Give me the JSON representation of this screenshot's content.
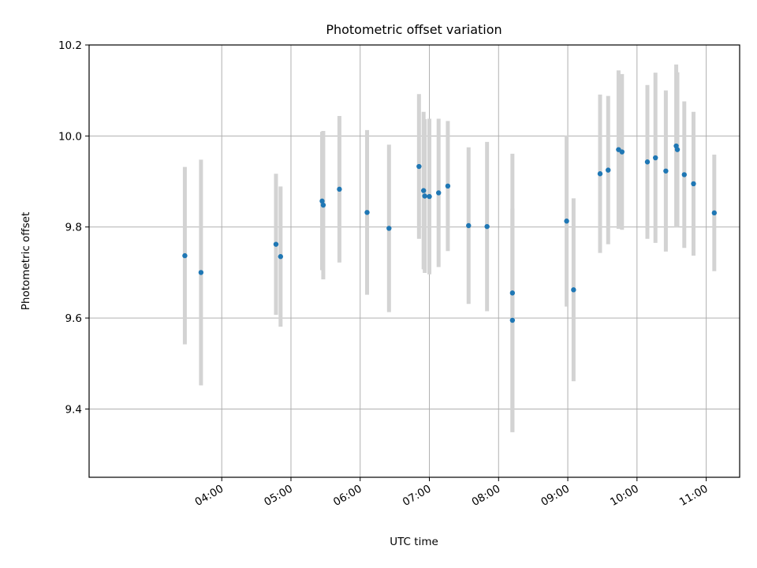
{
  "chart_data": {
    "type": "scatter",
    "title": "Photometric offset variation",
    "xlabel": "UTC time",
    "ylabel": "Photometric offset",
    "x_unit": "UTC time of day (HH:MM)",
    "xlim": [
      "02:05",
      "11:29"
    ],
    "ylim": [
      9.25,
      10.2
    ],
    "x_ticks": [
      "04:00",
      "05:00",
      "06:00",
      "07:00",
      "08:00",
      "09:00",
      "10:00",
      "11:00"
    ],
    "y_ticks": [
      9.4,
      9.6,
      9.8,
      10.0,
      10.2
    ],
    "y_tick_labels": [
      "9.4",
      "9.6",
      "9.8",
      "10.0",
      "10.2"
    ],
    "grid": true,
    "marker_color": "#1f77b4",
    "errorbar_color": "#d3d3d3",
    "series": [
      {
        "points": [
          {
            "x": "03:28",
            "y": 9.737,
            "err": 0.195
          },
          {
            "x": "03:42",
            "y": 9.7,
            "err": 0.248
          },
          {
            "x": "04:47",
            "y": 9.762,
            "err": 0.155
          },
          {
            "x": "04:51",
            "y": 9.735,
            "err": 0.154
          },
          {
            "x": "05:27",
            "y": 9.857,
            "err": 0.152
          },
          {
            "x": "05:28",
            "y": 9.848,
            "err": 0.163
          },
          {
            "x": "05:42",
            "y": 9.883,
            "err": 0.161
          },
          {
            "x": "06:06",
            "y": 9.832,
            "err": 0.181
          },
          {
            "x": "06:25",
            "y": 9.797,
            "err": 0.184
          },
          {
            "x": "06:51",
            "y": 9.933,
            "err": 0.159
          },
          {
            "x": "06:55",
            "y": 9.88,
            "err": 0.173
          },
          {
            "x": "06:56",
            "y": 9.868,
            "err": 0.169
          },
          {
            "x": "07:00",
            "y": 9.867,
            "err": 0.171
          },
          {
            "x": "07:08",
            "y": 9.875,
            "err": 0.163
          },
          {
            "x": "07:16",
            "y": 9.89,
            "err": 0.143
          },
          {
            "x": "07:34",
            "y": 9.803,
            "err": 0.172
          },
          {
            "x": "07:50",
            "y": 9.801,
            "err": 0.186
          },
          {
            "x": "08:12",
            "y": 9.655,
            "err": 0.306
          },
          {
            "x": "08:12",
            "y": 9.595,
            "err": 0.245
          },
          {
            "x": "08:59",
            "y": 9.813,
            "err": 0.188
          },
          {
            "x": "09:05",
            "y": 9.662,
            "err": 0.201
          },
          {
            "x": "09:28",
            "y": 9.917,
            "err": 0.174
          },
          {
            "x": "09:35",
            "y": 9.925,
            "err": 0.163
          },
          {
            "x": "09:44",
            "y": 9.97,
            "err": 0.174
          },
          {
            "x": "09:47",
            "y": 9.965,
            "err": 0.171
          },
          {
            "x": "10:09",
            "y": 9.943,
            "err": 0.169
          },
          {
            "x": "10:16",
            "y": 9.952,
            "err": 0.187
          },
          {
            "x": "10:25",
            "y": 9.923,
            "err": 0.177
          },
          {
            "x": "10:34",
            "y": 9.978,
            "err": 0.179
          },
          {
            "x": "10:35",
            "y": 9.97,
            "err": 0.17
          },
          {
            "x": "10:41",
            "y": 9.915,
            "err": 0.161
          },
          {
            "x": "10:49",
            "y": 9.895,
            "err": 0.158
          },
          {
            "x": "11:07",
            "y": 9.831,
            "err": 0.128
          }
        ]
      }
    ]
  }
}
